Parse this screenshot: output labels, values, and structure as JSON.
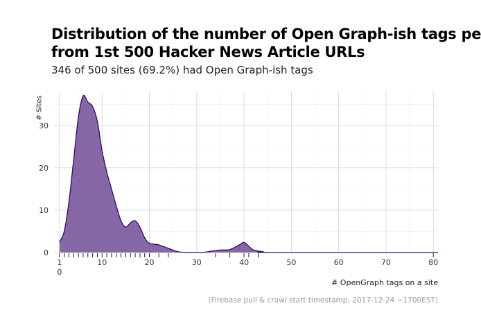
{
  "title_line1": "Distribution of the number of Open Graph-ish tags pe",
  "title_line2": "from 1st 500 Hacker News Article URLs",
  "subtitle": "346 of 500 sites (69.2%) had Open Graph-ish tags",
  "caption": "(Firebase pull & crawl start timestamp: 2017-12-24 ~1700EST)",
  "chart_data": {
    "type": "area",
    "title": "Distribution of the number of Open Graph-ish tags pe from 1st 500 Hacker News Article URLs",
    "subtitle": "346 of 500 sites (69.2%) had Open Graph-ish tags",
    "xlabel": "# OpenGraph tags on a site",
    "ylabel": "# Sites",
    "xlim": [
      0,
      81
    ],
    "ylim": [
      0,
      38
    ],
    "x_ticks": [
      1,
      10,
      20,
      30,
      40,
      50,
      60,
      70,
      80
    ],
    "x_extra_tick_label": "0",
    "y_ticks": [
      0,
      10,
      20,
      30
    ],
    "grid": true,
    "fill_color": "#7b5a9e",
    "line_color": "#2d0f5c",
    "density": [
      {
        "x": 1,
        "y": 2.5
      },
      {
        "x": 2,
        "y": 5
      },
      {
        "x": 3,
        "y": 12
      },
      {
        "x": 4,
        "y": 22
      },
      {
        "x": 5,
        "y": 32
      },
      {
        "x": 6,
        "y": 37
      },
      {
        "x": 7,
        "y": 35.5
      },
      {
        "x": 8,
        "y": 34.5
      },
      {
        "x": 9,
        "y": 31
      },
      {
        "x": 10,
        "y": 24
      },
      {
        "x": 11,
        "y": 19
      },
      {
        "x": 12,
        "y": 15
      },
      {
        "x": 13,
        "y": 11
      },
      {
        "x": 14,
        "y": 7.5
      },
      {
        "x": 15,
        "y": 6
      },
      {
        "x": 16,
        "y": 7
      },
      {
        "x": 17,
        "y": 7.5
      },
      {
        "x": 18,
        "y": 6
      },
      {
        "x": 19,
        "y": 3.5
      },
      {
        "x": 20,
        "y": 2.2
      },
      {
        "x": 22,
        "y": 1.8
      },
      {
        "x": 24,
        "y": 1
      },
      {
        "x": 26,
        "y": 0.2
      },
      {
        "x": 28,
        "y": 0
      },
      {
        "x": 31,
        "y": 0
      },
      {
        "x": 33,
        "y": 0.3
      },
      {
        "x": 35,
        "y": 0.6
      },
      {
        "x": 37,
        "y": 0.7
      },
      {
        "x": 39,
        "y": 1.8
      },
      {
        "x": 40,
        "y": 2.4
      },
      {
        "x": 41,
        "y": 1.5
      },
      {
        "x": 42,
        "y": 0.6
      },
      {
        "x": 44,
        "y": 0.2
      },
      {
        "x": 46,
        "y": 0
      },
      {
        "x": 81,
        "y": 0
      }
    ],
    "rug_x": [
      1,
      2,
      3,
      4,
      5,
      6,
      7,
      8,
      9,
      10,
      11,
      12,
      13,
      14,
      15,
      16,
      17,
      18,
      19,
      20,
      22,
      24,
      34,
      37,
      40,
      41,
      43,
      80
    ]
  }
}
